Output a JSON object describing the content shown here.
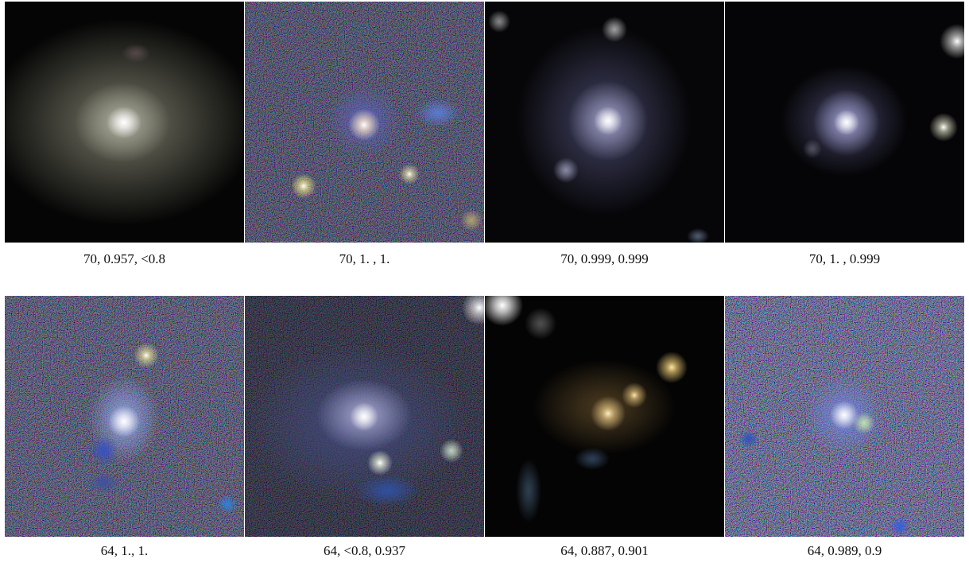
{
  "panels": [
    {
      "caption": "70, 0.957, <0.8"
    },
    {
      "caption": "70, 1. , 1."
    },
    {
      "caption": "70, 0.999, 0.999"
    },
    {
      "caption": "70, 1. , 0.999"
    },
    {
      "caption": "64, 1., 1."
    },
    {
      "caption": "64, <0.8, 0.937"
    },
    {
      "caption": "64, 0.887, 0.901"
    },
    {
      "caption": "64, 0.989, 0.9"
    }
  ]
}
